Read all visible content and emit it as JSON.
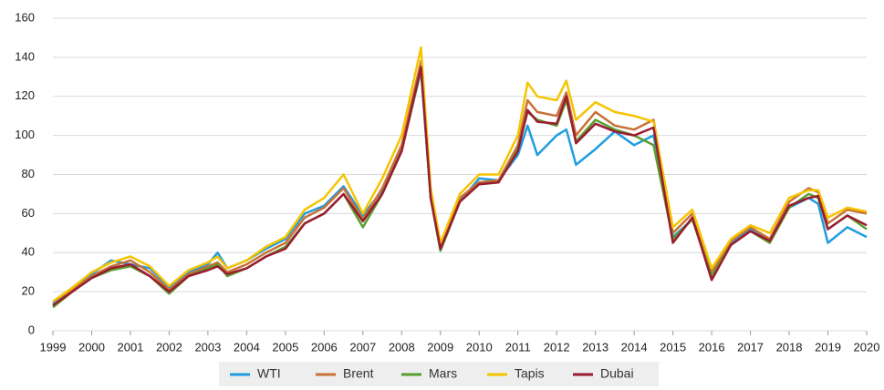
{
  "chart_data": {
    "type": "line",
    "x": [
      1999,
      1999.5,
      2000,
      2000.5,
      2001,
      2001.5,
      2002,
      2002.5,
      2003,
      2003.25,
      2003.5,
      2004,
      2004.5,
      2005,
      2005.5,
      2006,
      2006.5,
      2007,
      2007.5,
      2008,
      2008.5,
      2008.75,
      2009,
      2009.5,
      2010,
      2010.5,
      2011,
      2011.25,
      2011.5,
      2012,
      2012.25,
      2012.5,
      2013,
      2013.5,
      2014,
      2014.5,
      2015,
      2015.5,
      2016,
      2016.5,
      2017,
      2017.5,
      2018,
      2018.5,
      2018.75,
      2019,
      2019.5,
      2020
    ],
    "series": [
      {
        "name": "WTI",
        "color": "#1f9de0",
        "values": [
          14,
          22,
          29,
          36,
          34,
          32,
          22,
          30,
          34,
          40,
          32,
          36,
          42,
          47,
          60,
          64,
          74,
          59,
          72,
          93,
          133,
          68,
          41,
          66,
          78,
          77,
          90,
          105,
          90,
          100,
          103,
          85,
          93,
          102,
          95,
          100,
          48,
          57,
          30,
          45,
          52,
          46,
          63,
          68,
          65,
          45,
          53,
          48
        ]
      },
      {
        "name": "Brent",
        "color": "#c87137",
        "values": [
          13,
          21,
          28,
          33,
          36,
          30,
          21,
          29,
          33,
          35,
          30,
          34,
          40,
          45,
          58,
          63,
          73,
          57,
          73,
          95,
          138,
          70,
          43,
          68,
          76,
          77,
          95,
          118,
          112,
          110,
          122,
          100,
          112,
          105,
          103,
          108,
          50,
          60,
          30,
          46,
          53,
          47,
          66,
          73,
          71,
          55,
          62,
          60
        ]
      },
      {
        "name": "Mars",
        "color": "#5a9e2f",
        "values": [
          12,
          20,
          27,
          31,
          33,
          28,
          19,
          28,
          32,
          34,
          28,
          32,
          38,
          43,
          55,
          60,
          70,
          53,
          70,
          92,
          134,
          68,
          41,
          66,
          75,
          76,
          93,
          112,
          108,
          105,
          118,
          97,
          108,
          103,
          100,
          95,
          47,
          57,
          28,
          44,
          51,
          45,
          63,
          70,
          68,
          52,
          59,
          52
        ]
      },
      {
        "name": "Tapis",
        "color": "#f5c400",
        "values": [
          15,
          22,
          30,
          35,
          38,
          33,
          23,
          31,
          35,
          38,
          32,
          36,
          43,
          48,
          62,
          68,
          80,
          60,
          78,
          100,
          145,
          73,
          45,
          70,
          80,
          80,
          100,
          127,
          120,
          118,
          128,
          108,
          117,
          112,
          110,
          107,
          53,
          62,
          32,
          47,
          54,
          50,
          68,
          72,
          72,
          58,
          63,
          61
        ]
      },
      {
        "name": "Dubai",
        "color": "#9b1c31",
        "values": [
          13,
          20,
          27,
          32,
          34,
          28,
          20,
          28,
          31,
          33,
          29,
          32,
          38,
          42,
          55,
          60,
          70,
          56,
          70,
          92,
          135,
          68,
          42,
          66,
          75,
          76,
          92,
          113,
          107,
          106,
          120,
          96,
          106,
          102,
          100,
          104,
          45,
          58,
          26,
          44,
          51,
          46,
          64,
          68,
          69,
          52,
          59,
          54
        ]
      }
    ],
    "xlim": [
      1999,
      2020
    ],
    "xticks": [
      1999,
      2000,
      2001,
      2002,
      2003,
      2004,
      2005,
      2006,
      2007,
      2008,
      2009,
      2010,
      2011,
      2012,
      2013,
      2014,
      2015,
      2016,
      2017,
      2018,
      2019,
      2020
    ],
    "ylim": [
      0,
      160
    ],
    "yticks": [
      0,
      20,
      40,
      60,
      80,
      100,
      120,
      140,
      160
    ],
    "grid": true,
    "legend": "bottom"
  }
}
